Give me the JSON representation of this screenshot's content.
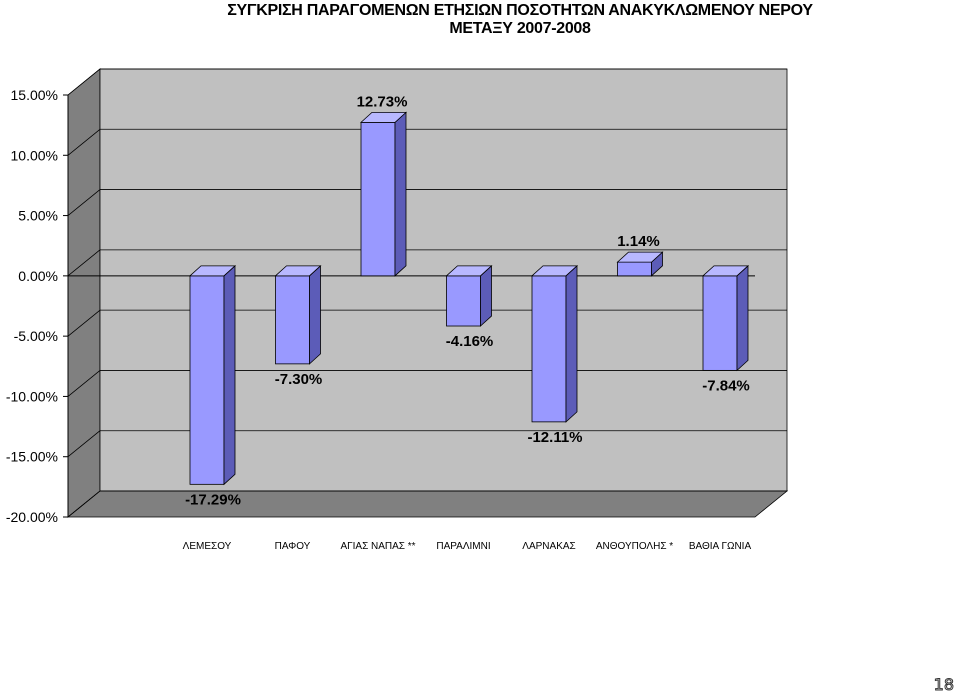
{
  "title_line1": "ΣΥΓΚΡΙΣΗ ΠΑΡΑΓΟΜΕΝΩΝ ΕΤΗΣΙΩΝ ΠΟΣΟΤΗΤΩΝ ΑΝΑΚΥΚΛΩΜΕΝΟΥ ΝΕΡΟΥ",
  "title_line2": "ΜΕΤΑΞΥ 2007-2008",
  "page_number": "18",
  "colors": {
    "bar_front": "#9999FF",
    "bar_side": "#5C5CB8",
    "bar_top": "#B8B8FF",
    "plot_back": "#C0C0C0",
    "plot_floor": "#808080",
    "gridline": "#000000"
  },
  "chart_data": {
    "type": "bar",
    "title": "ΣΥΓΚΡΙΣΗ ΠΑΡΑΓΟΜΕΝΩΝ ΕΤΗΣΙΩΝ ΠΟΣΟΤΗΤΩΝ ΑΝΑΚΥΚΛΩΜΕΝΟΥ ΝΕΡΟΥ ΜΕΤΑΞΥ 2007-2008",
    "style": "3d-column",
    "categories": [
      "ΛΕΜΕΣΟΥ",
      "ΠΑΦΟΥ",
      "ΑΓΙΑΣ ΝΑΠΑΣ **",
      "ΠΑΡΑΛΙΜΝΙ",
      "ΛΑΡΝΑΚΑΣ",
      "ΑΝΘΟΥΠΟΛΗΣ *",
      "ΒΑΘΙΑ ΓΩΝΙΑ"
    ],
    "values": [
      -17.29,
      -7.3,
      12.73,
      -4.16,
      -12.11,
      1.14,
      -7.84
    ],
    "data_labels": [
      "-17.29%",
      "-7.30%",
      "12.73%",
      "-4.16%",
      "-12.11%",
      "1.14%",
      "-7.84%"
    ],
    "ylim": [
      -20,
      15
    ],
    "yticks": [
      "15.00%",
      "10.00%",
      "5.00%",
      "0.00%",
      "-5.00%",
      "-10.00%",
      "-15.00%",
      "-20.00%"
    ],
    "grid": true,
    "legend": "none"
  }
}
